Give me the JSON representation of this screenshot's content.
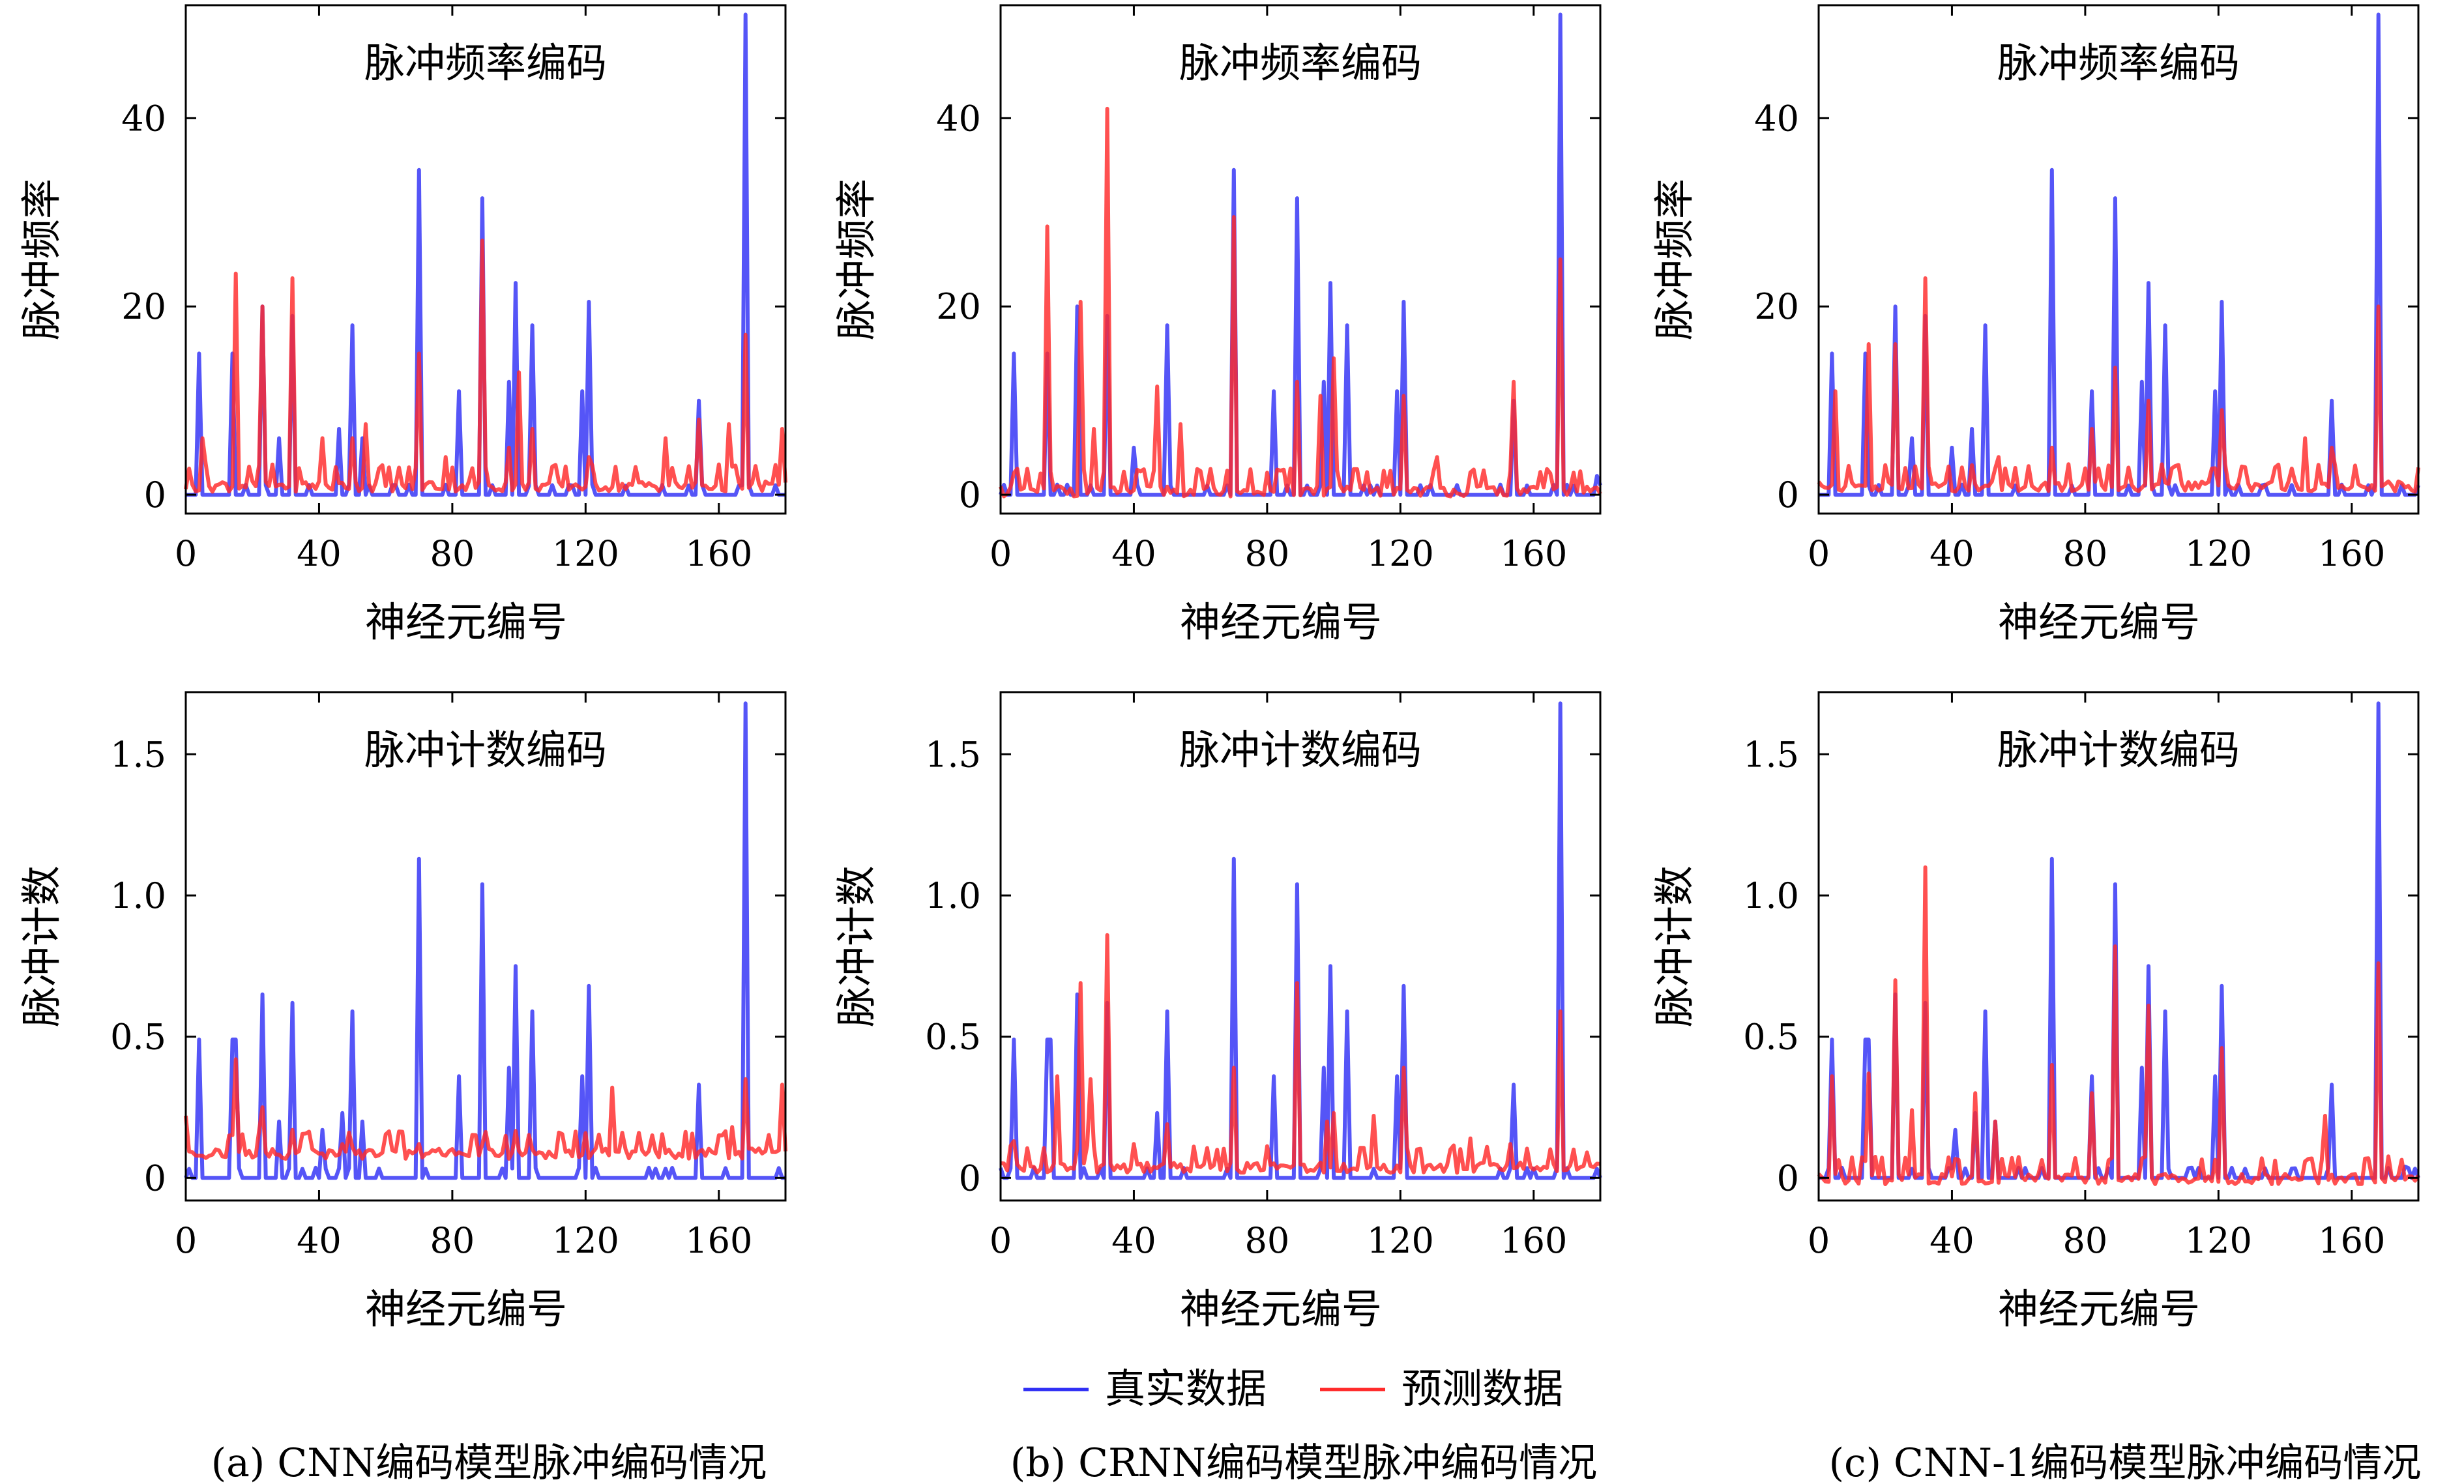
{
  "legend": [
    {
      "name": "真实数据",
      "color": "#2f2ff5"
    },
    {
      "name": "预测数据",
      "color": "#ff2a2a"
    }
  ],
  "captions": [
    "(a) CNN编码模型脉冲编码情况",
    "(b) CRNN编码模型脉冲编码情况",
    "(c) CNN-1编码模型脉冲编码情况"
  ],
  "chart_data": [
    {
      "type": "line",
      "column": 0,
      "row": 0,
      "title": "脉冲频率编码",
      "xlabel": "神经元编号",
      "ylabel": "脉冲频率",
      "xlim": [
        0,
        180
      ],
      "ylim": [
        -2,
        52
      ],
      "xticks": [
        0,
        40,
        80,
        120,
        160
      ],
      "yticks": [
        0,
        20,
        40
      ],
      "grid": false,
      "series": [
        {
          "name": "真实数据",
          "color": "#2f2ff5",
          "peaks": [
            [
              4,
              15
            ],
            [
              14,
              15
            ],
            [
              23,
              20
            ],
            [
              28,
              6
            ],
            [
              32,
              19
            ],
            [
              46,
              7
            ],
            [
              50,
              18
            ],
            [
              53,
              6
            ],
            [
              70,
              34.5
            ],
            [
              82,
              11
            ],
            [
              89,
              31.5
            ],
            [
              97,
              12
            ],
            [
              99,
              22.5
            ],
            [
              104,
              18
            ],
            [
              119,
              11
            ],
            [
              121,
              20.5
            ],
            [
              154,
              10
            ],
            [
              168,
              51
            ]
          ],
          "baseline": 0
        },
        {
          "name": "预测数据",
          "color": "#ff2a2a",
          "peaks": [
            [
              5,
              6
            ],
            [
              15,
              23.5
            ],
            [
              23,
              20
            ],
            [
              32,
              23
            ],
            [
              41,
              6
            ],
            [
              50,
              6
            ],
            [
              54,
              7.5
            ],
            [
              70,
              15
            ],
            [
              78,
              4
            ],
            [
              89,
              27
            ],
            [
              97,
              5
            ],
            [
              100,
              13
            ],
            [
              104,
              7
            ],
            [
              121,
              4
            ],
            [
              144,
              6
            ],
            [
              154,
              8
            ],
            [
              163,
              7.5
            ],
            [
              168,
              17
            ],
            [
              179,
              7
            ]
          ],
          "baseline": 1
        }
      ]
    },
    {
      "type": "line",
      "column": 1,
      "row": 0,
      "title": "脉冲频率编码",
      "xlabel": "神经元编号",
      "ylabel": "脉冲频率",
      "xlim": [
        0,
        180
      ],
      "ylim": [
        -2,
        52
      ],
      "xticks": [
        0,
        40,
        80,
        120,
        160
      ],
      "yticks": [
        0,
        20,
        40
      ],
      "grid": false,
      "series": [
        {
          "name": "真实数据",
          "color": "#2f2ff5",
          "peaks": [
            [
              4,
              15
            ],
            [
              14,
              15
            ],
            [
              23,
              20
            ],
            [
              32,
              19
            ],
            [
              40,
              5
            ],
            [
              50,
              18
            ],
            [
              70,
              34.5
            ],
            [
              82,
              11
            ],
            [
              89,
              31.5
            ],
            [
              97,
              12
            ],
            [
              99,
              22.5
            ],
            [
              104,
              18
            ],
            [
              119,
              11
            ],
            [
              121,
              20.5
            ],
            [
              154,
              10
            ],
            [
              168,
              51
            ],
            [
              179,
              2
            ]
          ],
          "baseline": 0
        },
        {
          "name": "预测数据",
          "color": "#ff2a2a",
          "peaks": [
            [
              14,
              28.5
            ],
            [
              24,
              20.5
            ],
            [
              28,
              7
            ],
            [
              32,
              41
            ],
            [
              47,
              11.5
            ],
            [
              54,
              7.5
            ],
            [
              70,
              29.5
            ],
            [
              89,
              12
            ],
            [
              96,
              10.5
            ],
            [
              100,
              14.5
            ],
            [
              121,
              10.5
            ],
            [
              131,
              4
            ],
            [
              154,
              12
            ],
            [
              168,
              25
            ]
          ],
          "baseline": 0.5
        }
      ]
    },
    {
      "type": "line",
      "column": 2,
      "row": 0,
      "title": "脉冲频率编码",
      "xlabel": "神经元编号",
      "ylabel": "脉冲频率",
      "xlim": [
        0,
        180
      ],
      "ylim": [
        -2,
        52
      ],
      "xticks": [
        0,
        40,
        80,
        120,
        160
      ],
      "yticks": [
        0,
        20,
        40
      ],
      "grid": false,
      "series": [
        {
          "name": "真实数据",
          "color": "#2f2ff5",
          "peaks": [
            [
              4,
              15
            ],
            [
              14,
              15
            ],
            [
              23,
              20
            ],
            [
              28,
              6
            ],
            [
              32,
              19
            ],
            [
              40,
              5
            ],
            [
              46,
              7
            ],
            [
              50,
              18
            ],
            [
              70,
              34.5
            ],
            [
              82,
              11
            ],
            [
              89,
              31.5
            ],
            [
              97,
              12
            ],
            [
              99,
              22.5
            ],
            [
              104,
              18
            ],
            [
              119,
              11
            ],
            [
              121,
              20.5
            ],
            [
              154,
              10
            ],
            [
              168,
              51
            ]
          ],
          "baseline": 0
        },
        {
          "name": "预测数据",
          "color": "#ff2a2a",
          "peaks": [
            [
              5,
              11
            ],
            [
              15,
              16
            ],
            [
              23,
              16
            ],
            [
              32,
              23
            ],
            [
              54,
              4
            ],
            [
              70,
              5
            ],
            [
              82,
              7
            ],
            [
              89,
              13.5
            ],
            [
              99,
              10
            ],
            [
              121,
              9
            ],
            [
              146,
              6
            ],
            [
              154,
              5
            ],
            [
              168,
              20
            ]
          ],
          "baseline": 1
        }
      ]
    },
    {
      "type": "line",
      "column": 0,
      "row": 1,
      "title": "脉冲计数编码",
      "xlabel": "神经元编号",
      "ylabel": "脉冲计数",
      "xlim": [
        0,
        180
      ],
      "ylim": [
        -0.08,
        1.72
      ],
      "xticks": [
        0,
        40,
        80,
        120,
        160
      ],
      "yticks": [
        0,
        0.5,
        1.0,
        1.5
      ],
      "grid": false,
      "series": [
        {
          "name": "真实数据",
          "color": "#2f2ff5",
          "peaks": [
            [
              4,
              0.49
            ],
            [
              14,
              0.49
            ],
            [
              15,
              0.49
            ],
            [
              23,
              0.65
            ],
            [
              28,
              0.2
            ],
            [
              32,
              0.62
            ],
            [
              41,
              0.17
            ],
            [
              47,
              0.23
            ],
            [
              50,
              0.59
            ],
            [
              53,
              0.2
            ],
            [
              70,
              1.13
            ],
            [
              82,
              0.36
            ],
            [
              89,
              1.04
            ],
            [
              97,
              0.39
            ],
            [
              99,
              0.75
            ],
            [
              104,
              0.59
            ],
            [
              119,
              0.36
            ],
            [
              121,
              0.68
            ],
            [
              154,
              0.33
            ],
            [
              168,
              1.68
            ]
          ],
          "baseline": 0
        },
        {
          "name": "预测数据",
          "color": "#ff2a2a",
          "peaks": [
            [
              0,
              0.22
            ],
            [
              15,
              0.42
            ],
            [
              23,
              0.25
            ],
            [
              32,
              0.17
            ],
            [
              47,
              0.12
            ],
            [
              50,
              0.11
            ],
            [
              70,
              0.12
            ],
            [
              89,
              0.12
            ],
            [
              128,
              0.32
            ],
            [
              164,
              0.18
            ],
            [
              168,
              0.35
            ],
            [
              179,
              0.33
            ]
          ],
          "baseline": 0.09
        }
      ]
    },
    {
      "type": "line",
      "column": 1,
      "row": 1,
      "title": "脉冲计数编码",
      "xlabel": "神经元编号",
      "ylabel": "脉冲计数",
      "xlim": [
        0,
        180
      ],
      "ylim": [
        -0.08,
        1.72
      ],
      "xticks": [
        0,
        40,
        80,
        120,
        160
      ],
      "yticks": [
        0,
        0.5,
        1.0,
        1.5
      ],
      "grid": false,
      "series": [
        {
          "name": "真实数据",
          "color": "#2f2ff5",
          "peaks": [
            [
              4,
              0.49
            ],
            [
              14,
              0.49
            ],
            [
              15,
              0.49
            ],
            [
              23,
              0.65
            ],
            [
              32,
              0.62
            ],
            [
              47,
              0.23
            ],
            [
              50,
              0.59
            ],
            [
              70,
              1.13
            ],
            [
              82,
              0.36
            ],
            [
              89,
              1.04
            ],
            [
              97,
              0.39
            ],
            [
              99,
              0.75
            ],
            [
              104,
              0.59
            ],
            [
              119,
              0.36
            ],
            [
              121,
              0.68
            ],
            [
              154,
              0.33
            ],
            [
              168,
              1.68
            ]
          ],
          "baseline": 0
        },
        {
          "name": "预测数据",
          "color": "#ff2a2a",
          "peaks": [
            [
              4,
              0.13
            ],
            [
              17,
              0.36
            ],
            [
              24,
              0.69
            ],
            [
              27,
              0.35
            ],
            [
              32,
              0.86
            ],
            [
              40,
              0.12
            ],
            [
              50,
              0.19
            ],
            [
              70,
              0.39
            ],
            [
              89,
              0.69
            ],
            [
              98,
              0.2
            ],
            [
              100,
              0.23
            ],
            [
              112,
              0.22
            ],
            [
              121,
              0.39
            ],
            [
              141,
              0.14
            ],
            [
              153,
              0.12
            ],
            [
              168,
              0.59
            ],
            [
              176,
              0.09
            ]
          ],
          "baseline": 0.04
        }
      ]
    },
    {
      "type": "line",
      "column": 2,
      "row": 1,
      "title": "脉冲计数编码",
      "xlabel": "神经元编号",
      "ylabel": "脉冲计数",
      "xlim": [
        0,
        180
      ],
      "ylim": [
        -0.08,
        1.72
      ],
      "xticks": [
        0,
        40,
        80,
        120,
        160
      ],
      "yticks": [
        0,
        0.5,
        1.0,
        1.5
      ],
      "grid": false,
      "series": [
        {
          "name": "真实数据",
          "color": "#2f2ff5",
          "peaks": [
            [
              4,
              0.49
            ],
            [
              14,
              0.49
            ],
            [
              15,
              0.49
            ],
            [
              23,
              0.65
            ],
            [
              32,
              0.62
            ],
            [
              41,
              0.17
            ],
            [
              47,
              0.23
            ],
            [
              50,
              0.59
            ],
            [
              53,
              0.2
            ],
            [
              70,
              1.13
            ],
            [
              82,
              0.36
            ],
            [
              89,
              1.04
            ],
            [
              97,
              0.39
            ],
            [
              99,
              0.75
            ],
            [
              104,
              0.59
            ],
            [
              119,
              0.36
            ],
            [
              121,
              0.68
            ],
            [
              154,
              0.33
            ],
            [
              168,
              1.68
            ],
            [
              176,
              0.04
            ]
          ],
          "baseline": 0
        },
        {
          "name": "预测数据",
          "color": "#ff2a2a",
          "peaks": [
            [
              4,
              0.36
            ],
            [
              15,
              0.37
            ],
            [
              23,
              0.7
            ],
            [
              28,
              0.24
            ],
            [
              32,
              1.1
            ],
            [
              47,
              0.3
            ],
            [
              53,
              0.2
            ],
            [
              70,
              0.4
            ],
            [
              82,
              0.3
            ],
            [
              89,
              0.82
            ],
            [
              99,
              0.61
            ],
            [
              121,
              0.46
            ],
            [
              152,
              0.22
            ],
            [
              168,
              0.76
            ]
          ],
          "baseline": 0
        }
      ]
    }
  ]
}
